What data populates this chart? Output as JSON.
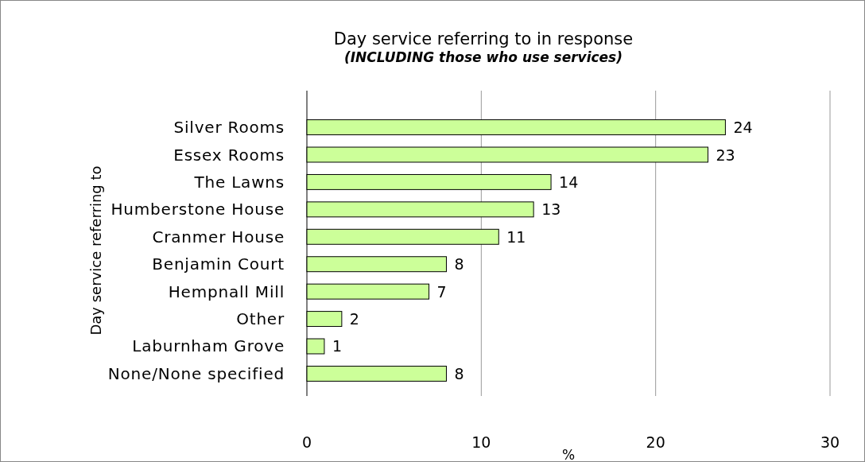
{
  "chart_data": {
    "type": "bar",
    "orientation": "horizontal",
    "title": "Day service referring to in response",
    "subtitle": "(INCLUDING those who use services)",
    "xlabel": "%",
    "ylabel": "Day service referring to",
    "categories": [
      "Silver Rooms",
      "Essex Rooms",
      "The Lawns",
      "Humberstone House",
      "Cranmer House",
      "Benjamin Court",
      "Hempnall Mill",
      "Other",
      "Laburnham Grove",
      "None/None specified"
    ],
    "values": [
      24,
      23,
      14,
      13,
      11,
      8,
      7,
      2,
      1,
      8
    ],
    "color": "#ccff99",
    "xlim": [
      0,
      30
    ],
    "xticks": [
      0,
      10,
      20,
      30
    ],
    "grid": "x",
    "data_labels": true
  }
}
